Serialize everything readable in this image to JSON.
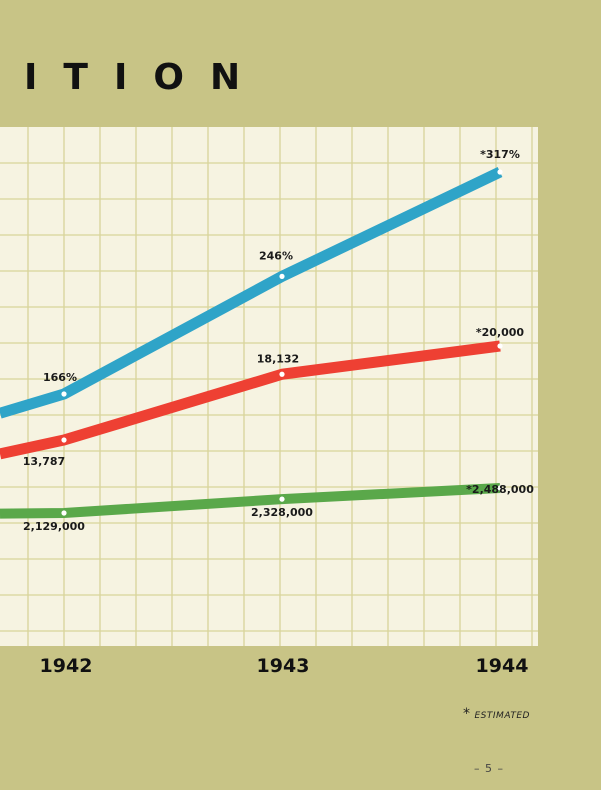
{
  "page": {
    "title_fragment": "ITION",
    "footnote_marker": "*",
    "footnote_text": "ESTIMATED",
    "page_number": "– 5 –"
  },
  "colors": {
    "background": "#c8c486",
    "grid_panel": "#f6f3e1",
    "grid_lines": "#d8d49a",
    "blue": "#2fa4c8",
    "red": "#ee4033",
    "green": "#5aa84a"
  },
  "chart_data": {
    "type": "line",
    "categories": [
      "1942",
      "1943",
      "1944"
    ],
    "grid": true,
    "series": [
      {
        "color": "#2fa4c8",
        "values": [
          166,
          246,
          317
        ],
        "labels": [
          "166%",
          "246%",
          "*317%"
        ]
      },
      {
        "color": "#ee4033",
        "values": [
          13787,
          18132,
          20000
        ],
        "labels": [
          "13,787",
          "18,132",
          "*20,000"
        ]
      },
      {
        "color": "#5aa84a",
        "values": [
          2129000,
          2328000,
          2488000
        ],
        "labels": [
          "2,129,000",
          "2,328,000",
          "*2,488,000"
        ]
      }
    ],
    "annotations": [
      "* ESTIMATED"
    ]
  }
}
